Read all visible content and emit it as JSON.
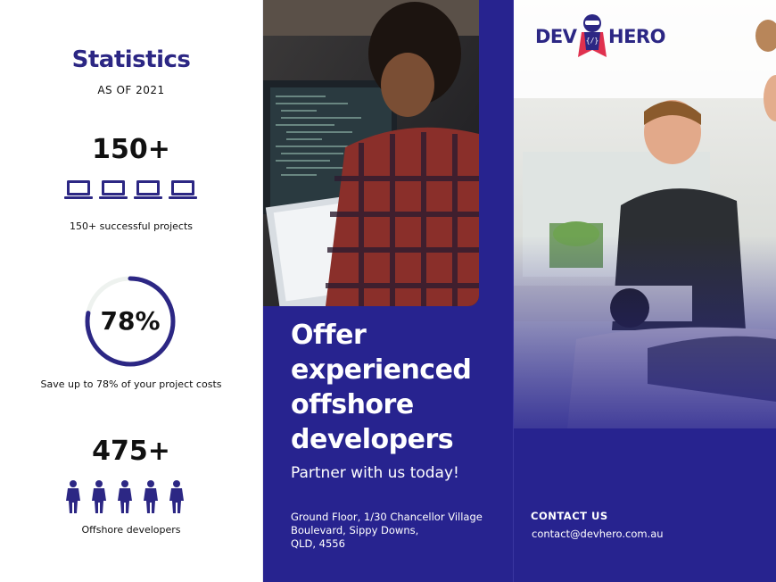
{
  "statistics": {
    "title": "Statistics",
    "subtitle": "AS OF 2021",
    "projects": {
      "value": "150+",
      "caption": "150+ successful projects",
      "icon": "laptop-icon",
      "icon_count": 4
    },
    "savings": {
      "value": "78%",
      "percent": 78,
      "caption": "Save up to 78% of your project costs"
    },
    "developers": {
      "value": "475+",
      "caption": "Offshore developers",
      "icon": "person-icon",
      "icon_count": 5
    }
  },
  "brand": {
    "left": "DEV",
    "right": "HERO",
    "mascot": "hero-mascot-icon",
    "color": "#2c2784"
  },
  "headline": {
    "lines": [
      "Offer",
      "experienced",
      "offshore",
      "developers"
    ],
    "tagline": "Partner with us today!"
  },
  "address": {
    "lines": [
      "Ground Floor, 1/30 Chancellor Village",
      "Boulevard, Sippy Downs,",
      "QLD, 4556"
    ]
  },
  "contact": {
    "heading": "CONTACT US",
    "email": "contact@devhero.com.au"
  },
  "colors": {
    "primary": "#27238f",
    "accent": "#2c2784",
    "ring_track": "#eef2ef"
  }
}
